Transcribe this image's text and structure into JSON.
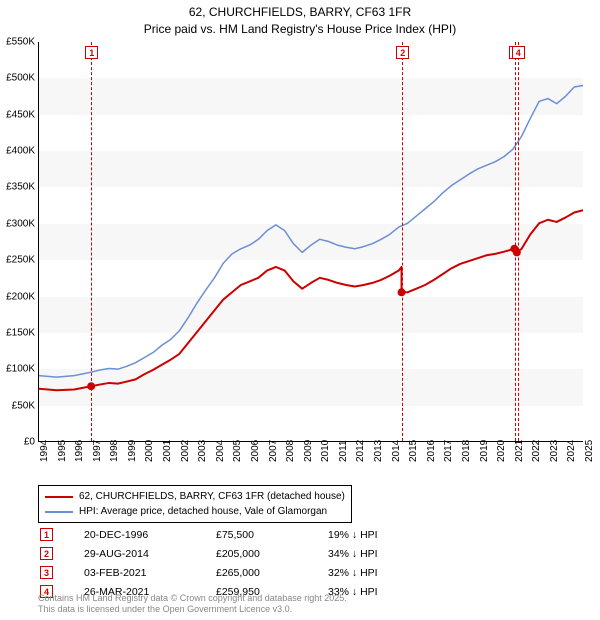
{
  "title": {
    "line1": "62, CHURCHFIELDS, BARRY, CF63 1FR",
    "line2": "Price paid vs. HM Land Registry's House Price Index (HPI)"
  },
  "chart": {
    "type": "line",
    "background_color": "#ffffff",
    "band_color": "#f7f7f7",
    "x_axis": {
      "min_year": 1994,
      "max_year": 2025,
      "ticks": [
        1994,
        1995,
        1996,
        1997,
        1998,
        1999,
        2000,
        2001,
        2002,
        2003,
        2004,
        2005,
        2006,
        2007,
        2008,
        2009,
        2010,
        2011,
        2012,
        2013,
        2014,
        2015,
        2016,
        2017,
        2018,
        2019,
        2020,
        2021,
        2022,
        2023,
        2024,
        2025
      ]
    },
    "y_axis": {
      "min": 0,
      "max": 550000,
      "ticks": [
        0,
        50000,
        100000,
        150000,
        200000,
        250000,
        300000,
        350000,
        400000,
        450000,
        500000,
        550000
      ],
      "labels": [
        "£0",
        "£50K",
        "£100K",
        "£150K",
        "£200K",
        "£250K",
        "£300K",
        "£350K",
        "£400K",
        "£450K",
        "£500K",
        "£550K"
      ]
    },
    "series": [
      {
        "id": "price_paid",
        "label": "62, CHURCHFIELDS, BARRY, CF63 1FR (detached house)",
        "color": "#cc0000",
        "line_width": 2,
        "points": [
          [
            1994.0,
            72000
          ],
          [
            1995.0,
            70000
          ],
          [
            1996.0,
            71000
          ],
          [
            1996.97,
            75500
          ],
          [
            1997.5,
            78000
          ],
          [
            1998.0,
            80000
          ],
          [
            1998.5,
            79000
          ],
          [
            1999.0,
            82000
          ],
          [
            1999.5,
            85000
          ],
          [
            2000.0,
            92000
          ],
          [
            2000.5,
            98000
          ],
          [
            2001.0,
            105000
          ],
          [
            2001.5,
            112000
          ],
          [
            2002.0,
            120000
          ],
          [
            2002.5,
            135000
          ],
          [
            2003.0,
            150000
          ],
          [
            2003.5,
            165000
          ],
          [
            2004.0,
            180000
          ],
          [
            2004.5,
            195000
          ],
          [
            2005.0,
            205000
          ],
          [
            2005.5,
            215000
          ],
          [
            2006.0,
            220000
          ],
          [
            2006.5,
            225000
          ],
          [
            2007.0,
            235000
          ],
          [
            2007.5,
            240000
          ],
          [
            2008.0,
            235000
          ],
          [
            2008.5,
            220000
          ],
          [
            2009.0,
            210000
          ],
          [
            2009.5,
            218000
          ],
          [
            2010.0,
            225000
          ],
          [
            2010.5,
            222000
          ],
          [
            2011.0,
            218000
          ],
          [
            2011.5,
            215000
          ],
          [
            2012.0,
            213000
          ],
          [
            2012.5,
            215000
          ],
          [
            2013.0,
            218000
          ],
          [
            2013.5,
            222000
          ],
          [
            2014.0,
            228000
          ],
          [
            2014.5,
            235000
          ],
          [
            2014.66,
            240000
          ],
          [
            2014.66,
            205000
          ],
          [
            2015.0,
            205000
          ],
          [
            2015.5,
            210000
          ],
          [
            2016.0,
            215000
          ],
          [
            2016.5,
            222000
          ],
          [
            2017.0,
            230000
          ],
          [
            2017.5,
            238000
          ],
          [
            2018.0,
            244000
          ],
          [
            2018.5,
            248000
          ],
          [
            2019.0,
            252000
          ],
          [
            2019.5,
            256000
          ],
          [
            2020.0,
            258000
          ],
          [
            2020.5,
            261000
          ],
          [
            2021.09,
            265000
          ],
          [
            2021.23,
            259950
          ],
          [
            2021.5,
            265000
          ],
          [
            2022.0,
            285000
          ],
          [
            2022.5,
            300000
          ],
          [
            2023.0,
            305000
          ],
          [
            2023.5,
            302000
          ],
          [
            2024.0,
            308000
          ],
          [
            2024.5,
            315000
          ],
          [
            2025.0,
            318000
          ]
        ]
      },
      {
        "id": "hpi",
        "label": "HPI: Average price, detached house, Vale of Glamorgan",
        "color": "#6b8fd4",
        "line_width": 1.5,
        "points": [
          [
            1994.0,
            90000
          ],
          [
            1995.0,
            88000
          ],
          [
            1996.0,
            90000
          ],
          [
            1997.0,
            95000
          ],
          [
            1997.5,
            98000
          ],
          [
            1998.0,
            100000
          ],
          [
            1998.5,
            99000
          ],
          [
            1999.0,
            103000
          ],
          [
            1999.5,
            108000
          ],
          [
            2000.0,
            115000
          ],
          [
            2000.5,
            122000
          ],
          [
            2001.0,
            132000
          ],
          [
            2001.5,
            140000
          ],
          [
            2002.0,
            152000
          ],
          [
            2002.5,
            170000
          ],
          [
            2003.0,
            190000
          ],
          [
            2003.5,
            208000
          ],
          [
            2004.0,
            225000
          ],
          [
            2004.5,
            245000
          ],
          [
            2005.0,
            258000
          ],
          [
            2005.5,
            265000
          ],
          [
            2006.0,
            270000
          ],
          [
            2006.5,
            278000
          ],
          [
            2007.0,
            290000
          ],
          [
            2007.5,
            298000
          ],
          [
            2008.0,
            290000
          ],
          [
            2008.5,
            272000
          ],
          [
            2009.0,
            260000
          ],
          [
            2009.5,
            270000
          ],
          [
            2010.0,
            278000
          ],
          [
            2010.5,
            275000
          ],
          [
            2011.0,
            270000
          ],
          [
            2011.5,
            267000
          ],
          [
            2012.0,
            265000
          ],
          [
            2012.5,
            268000
          ],
          [
            2013.0,
            272000
          ],
          [
            2013.5,
            278000
          ],
          [
            2014.0,
            285000
          ],
          [
            2014.5,
            295000
          ],
          [
            2015.0,
            300000
          ],
          [
            2015.5,
            310000
          ],
          [
            2016.0,
            320000
          ],
          [
            2016.5,
            330000
          ],
          [
            2017.0,
            342000
          ],
          [
            2017.5,
            352000
          ],
          [
            2018.0,
            360000
          ],
          [
            2018.5,
            368000
          ],
          [
            2019.0,
            375000
          ],
          [
            2019.5,
            380000
          ],
          [
            2020.0,
            385000
          ],
          [
            2020.5,
            392000
          ],
          [
            2021.0,
            402000
          ],
          [
            2021.5,
            420000
          ],
          [
            2022.0,
            445000
          ],
          [
            2022.5,
            468000
          ],
          [
            2023.0,
            472000
          ],
          [
            2023.5,
            465000
          ],
          [
            2024.0,
            475000
          ],
          [
            2024.5,
            488000
          ],
          [
            2025.0,
            490000
          ]
        ]
      }
    ],
    "sale_markers": [
      {
        "n": "1",
        "year": 1996.97,
        "price": 75500
      },
      {
        "n": "2",
        "year": 2014.66,
        "price": 205000
      },
      {
        "n": "3",
        "year": 2021.09,
        "price": 265000
      },
      {
        "n": "4",
        "year": 2021.23,
        "price": 259950
      }
    ]
  },
  "legend": {
    "row1_label": "62, CHURCHFIELDS, BARRY, CF63 1FR (detached house)",
    "row2_label": "HPI: Average price, detached house, Vale of Glamorgan"
  },
  "sales_table": [
    {
      "n": "1",
      "date": "20-DEC-1996",
      "price": "£75,500",
      "delta": "19% ↓ HPI"
    },
    {
      "n": "2",
      "date": "29-AUG-2014",
      "price": "£205,000",
      "delta": "34% ↓ HPI"
    },
    {
      "n": "3",
      "date": "03-FEB-2021",
      "price": "£265,000",
      "delta": "32% ↓ HPI"
    },
    {
      "n": "4",
      "date": "26-MAR-2021",
      "price": "£259,950",
      "delta": "33% ↓ HPI"
    }
  ],
  "attribution": {
    "line1": "Contains HM Land Registry data © Crown copyright and database right 2025.",
    "line2": "This data is licensed under the Open Government Licence v3.0."
  }
}
